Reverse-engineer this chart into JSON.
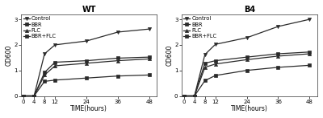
{
  "time": [
    0,
    4,
    8,
    12,
    24,
    36,
    48
  ],
  "WT": {
    "Control": [
      0,
      0.0,
      1.65,
      2.0,
      2.15,
      2.5,
      2.62
    ],
    "BBR": [
      0,
      0.0,
      0.92,
      1.32,
      1.38,
      1.48,
      1.52
    ],
    "FLC": [
      0,
      0.0,
      0.82,
      1.18,
      1.28,
      1.38,
      1.45
    ],
    "BBR+FLC": [
      0,
      0.0,
      0.57,
      0.62,
      0.7,
      0.78,
      0.82
    ]
  },
  "B4": {
    "Control": [
      0,
      0.0,
      1.62,
      2.02,
      2.28,
      2.72,
      3.0
    ],
    "BBR": [
      0,
      0.0,
      1.28,
      1.38,
      1.52,
      1.65,
      1.72
    ],
    "FLC": [
      0,
      0.0,
      1.12,
      1.25,
      1.42,
      1.56,
      1.65
    ],
    "BBR+FLC": [
      0,
      0.0,
      0.6,
      0.8,
      1.0,
      1.12,
      1.2
    ]
  },
  "legend_labels": [
    "Control",
    "BBR",
    "FLC",
    "BBR+FLC"
  ],
  "marker_symbols": [
    "v",
    "s",
    "^",
    "s"
  ],
  "xlabel": "TIME(hours)",
  "ylabel": "OD600",
  "ylim": [
    0,
    3.2
  ],
  "yticks": [
    0,
    1,
    2,
    3
  ],
  "xticks": [
    0,
    4,
    8,
    12,
    24,
    36,
    48
  ],
  "title_WT": "WT",
  "title_B4": "B4",
  "line_color": "#2a2a2a",
  "bg_color": "#ffffff",
  "markersize": 3.0,
  "linewidth": 0.9,
  "legend_fontsize": 4.8,
  "axis_fontsize": 5.5,
  "title_fontsize": 7.0,
  "tick_labelsize": 5.0
}
